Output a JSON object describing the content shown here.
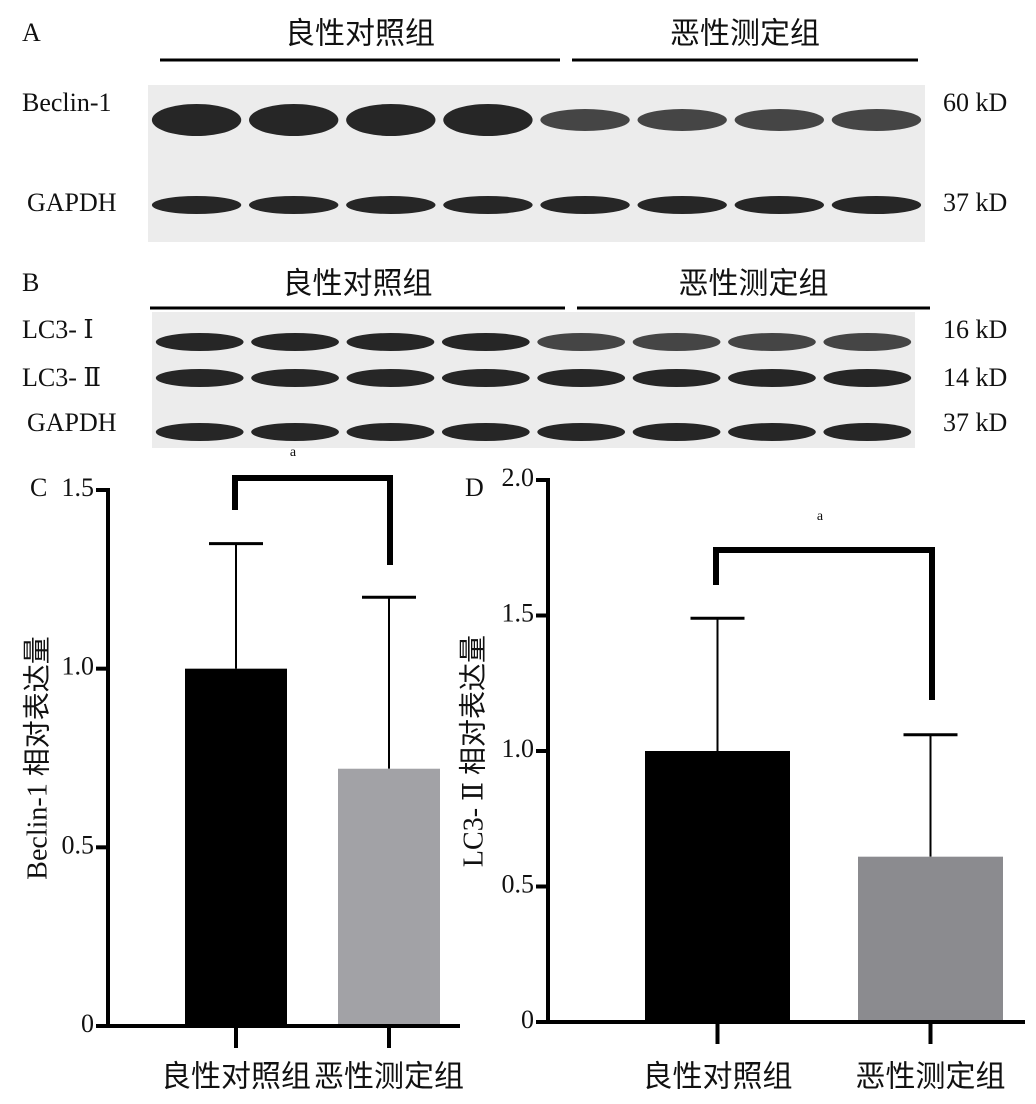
{
  "blots": [
    {
      "label": "A",
      "groups": [
        "良性对照组",
        "恶性测定组"
      ],
      "rows": [
        {
          "name": "Beclin-1",
          "size": "60 kD"
        },
        {
          "name": "GAPDH",
          "size": "37 kD"
        }
      ]
    },
    {
      "label": "B",
      "groups": [
        "良性对照组",
        "恶性测定组"
      ],
      "rows": [
        {
          "name": "LC3- Ⅰ",
          "size": "16 kD"
        },
        {
          "name": "LC3- Ⅱ",
          "size": "14 kD"
        },
        {
          "name": "GAPDH",
          "size": "37 kD"
        }
      ]
    }
  ],
  "chart_data": [
    {
      "type": "bar",
      "panel": "C",
      "y_label": "Beclin-1 相对表达量",
      "categories": [
        "良性对照组",
        "恶性测定组"
      ],
      "values": [
        1.0,
        0.72
      ],
      "errors": [
        0.35,
        0.48
      ],
      "colors": [
        "#000000",
        "#a2a2a6"
      ],
      "ylim": [
        0,
        1.5
      ],
      "yticks": [
        0,
        0.5,
        {
          "value": 1,
          "label": "1.0"
        },
        1.5
      ],
      "annotation": "a"
    },
    {
      "type": "bar",
      "panel": "D",
      "y_label": "LC3- Ⅱ 相对表达量",
      "categories": [
        "良性对照组",
        "恶性测定组"
      ],
      "values": [
        1.0,
        0.61
      ],
      "errors": [
        0.49,
        0.45
      ],
      "colors": [
        "#000000",
        "#8b8b8f"
      ],
      "ylim": [
        0,
        2.0
      ],
      "yticks": [
        0,
        0.5,
        {
          "value": 1,
          "label": "1.0"
        },
        1.5,
        {
          "value": 2,
          "label": "2.0"
        }
      ],
      "annotation": "a"
    }
  ]
}
